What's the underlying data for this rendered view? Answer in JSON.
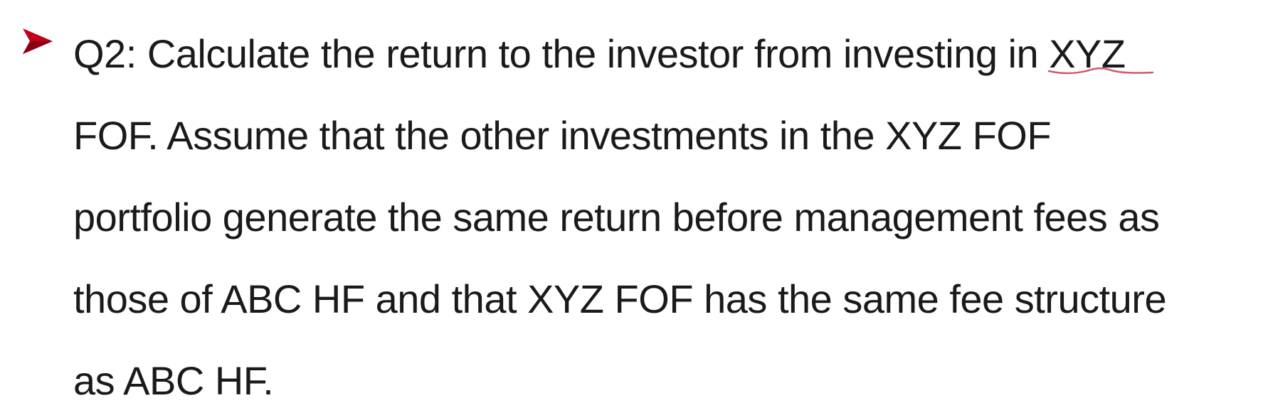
{
  "bullet": {
    "icon": "arrow-bullet-icon",
    "color": "#c0001a"
  },
  "question": {
    "line1_prefix": "Q2: Calculate the return to the investor from investing in ",
    "line1_highlight": "XYZ",
    "line2": "FOF. Assume that the other investments in the XYZ FOF",
    "line3": "portfolio generate the same return before management fees as",
    "line4": "those of ABC HF and that XYZ FOF has the same fee structure",
    "line5": "as ABC HF."
  },
  "annotation": {
    "icon": "handwritten-underline",
    "color": "#d05a6e"
  }
}
